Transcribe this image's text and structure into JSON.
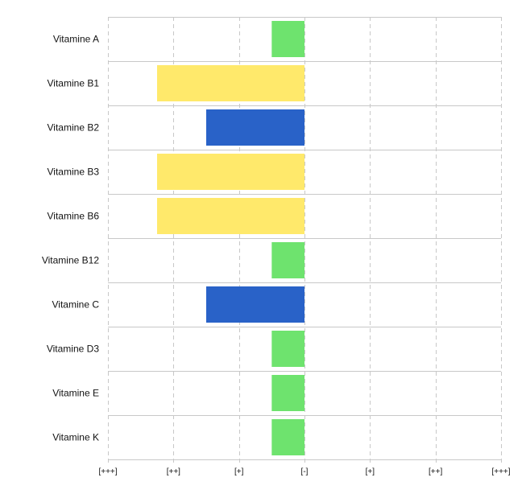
{
  "chart_data": {
    "type": "bar",
    "orientation": "horizontal",
    "categories": [
      "Vitamine A",
      "Vitamine B1",
      "Vitamine B2",
      "Vitamine B3",
      "Vitamine B6",
      "Vitamine B12",
      "Vitamine C",
      "Vitamine D3",
      "Vitamine E",
      "Vitamine K"
    ],
    "values": [
      -0.5,
      -2.25,
      -1.5,
      -2.25,
      -2.25,
      -0.5,
      -1.5,
      -0.5,
      -0.5,
      -0.5
    ],
    "bar_colors": [
      "#6ee36e",
      "#ffe96b",
      "#2962c8",
      "#ffe96b",
      "#ffe96b",
      "#6ee36e",
      "#2962c8",
      "#6ee36e",
      "#6ee36e",
      "#6ee36e"
    ],
    "x_ticks": [
      -3,
      -2,
      -1,
      0,
      1,
      2,
      3
    ],
    "x_tick_labels": [
      "[+++]",
      "[++]",
      "[+]",
      "[-]",
      "[+]",
      "[++]",
      "[+++]"
    ],
    "xlim": [
      -3,
      3
    ],
    "grid": "vertical dashed",
    "title": "",
    "xlabel": "",
    "ylabel": ""
  }
}
